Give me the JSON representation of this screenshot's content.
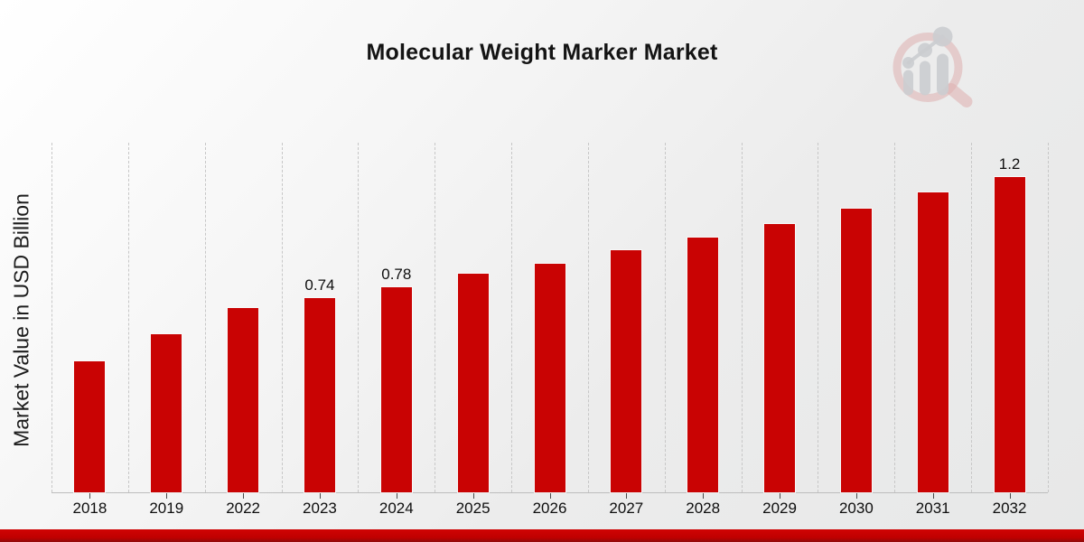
{
  "page": {
    "title": "Molecular Weight Marker Market"
  },
  "colors": {
    "bar": "#c90303",
    "footer_strip": "#c00000",
    "gridline": "#c7c7c7",
    "background_light": "#ffffff",
    "background_dark": "#e7e8e8"
  },
  "logo": {
    "name": "magnifier-bar-chart-watermark"
  },
  "chart_data": {
    "type": "bar",
    "title": "Molecular Weight Marker Market",
    "xlabel": "",
    "ylabel": "Market Value in USD Billion",
    "categories": [
      "2018",
      "2019",
      "2022",
      "2023",
      "2024",
      "2025",
      "2026",
      "2027",
      "2028",
      "2029",
      "2030",
      "2031",
      "2032"
    ],
    "values": [
      0.5,
      0.6,
      0.7,
      0.74,
      0.78,
      0.83,
      0.87,
      0.92,
      0.97,
      1.02,
      1.08,
      1.14,
      1.2
    ],
    "shown_value_labels": [
      "",
      "",
      "",
      "0.74",
      "0.78",
      "",
      "",
      "",
      "",
      "",
      "",
      "",
      "1.2"
    ],
    "ylim": [
      0,
      1.33
    ],
    "grid": "vertical-dashed",
    "legend": "none",
    "bar_color": "#c90303"
  }
}
